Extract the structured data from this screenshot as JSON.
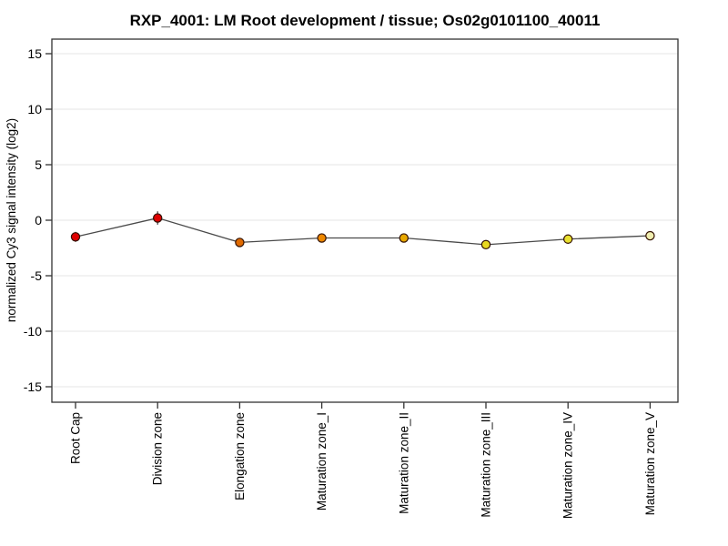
{
  "page": {
    "background": "#ffffff"
  },
  "chart_data": {
    "type": "line",
    "title": "RXP_4001: LM Root development / tissue; Os02g0101100_40011",
    "xlabel": "",
    "ylabel": "normalized Cy3 signal intensity (log2)",
    "ylim": [
      -16.4,
      16.3
    ],
    "yticks": [
      15,
      10,
      5,
      0,
      -5,
      -10,
      -15
    ],
    "grid": true,
    "legend": "none",
    "categories": [
      "Root Cap",
      "Division zone",
      "Elongation zone",
      "Maturation zone_I",
      "Maturation zone_II",
      "Maturation zone_III",
      "Maturation zone_IV",
      "Maturation zone_V"
    ],
    "series": [
      {
        "name": "normalized Cy3 signal intensity",
        "values": [
          -1.5,
          0.2,
          -2.0,
          -1.6,
          -1.6,
          -2.2,
          -1.7,
          -1.4
        ],
        "errors": [
          0.45,
          0.6,
          0.25,
          0.3,
          0.25,
          0.2,
          0.25,
          0.2
        ],
        "point_colors": [
          "#dd0000",
          "#dd0000",
          "#e06a00",
          "#ee8800",
          "#e8a800",
          "#e8d820",
          "#e8e030",
          "#f0eeb0"
        ],
        "line_color": "#4a4a4a",
        "point_outline": "#331100"
      }
    ],
    "colors": {
      "grid": "#e6e6e6",
      "axis": "#333333",
      "error_bar": "#333333",
      "text": "#000000"
    }
  }
}
